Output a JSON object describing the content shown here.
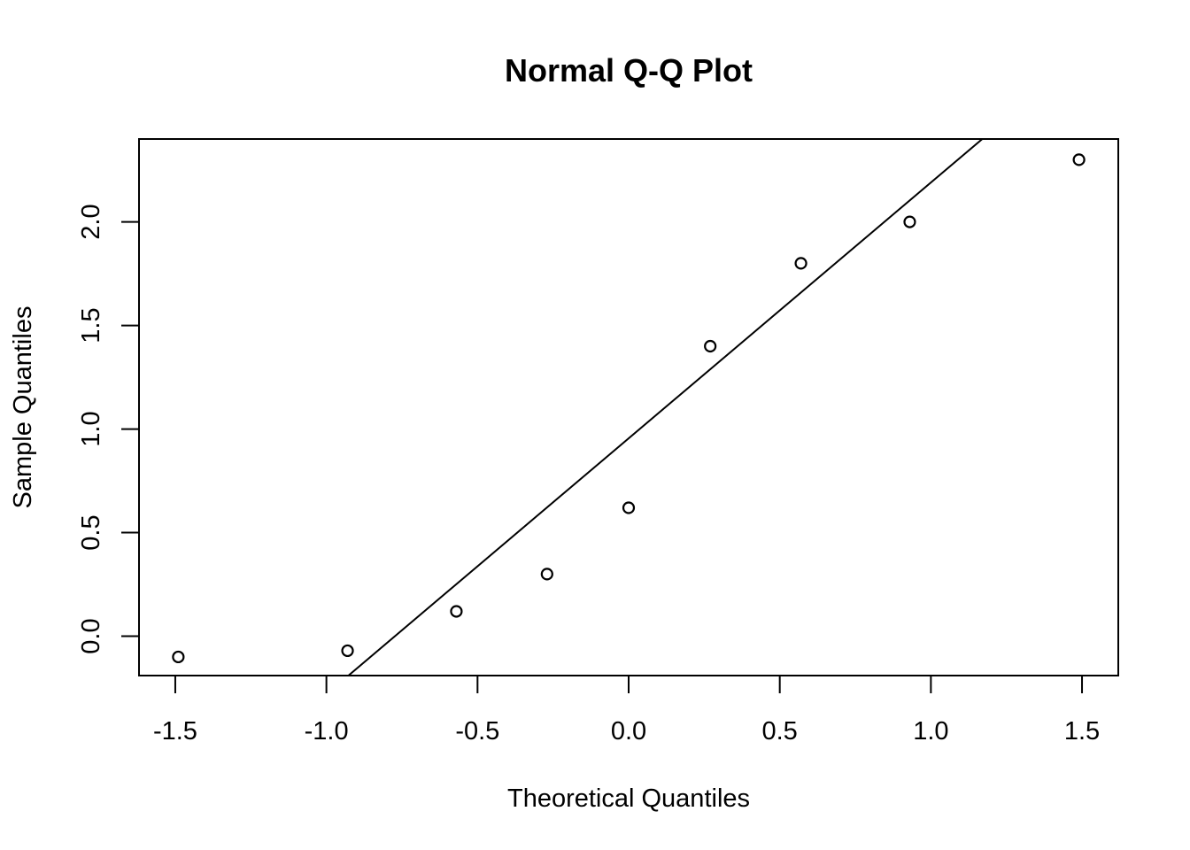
{
  "chart_data": {
    "type": "scatter",
    "title": "Normal Q-Q Plot",
    "xlabel": "Theoretical Quantiles",
    "ylabel": "Sample Quantiles",
    "xlim": [
      -1.62,
      1.62
    ],
    "ylim": [
      -0.19,
      2.4
    ],
    "x_ticks": [
      -1.5,
      -1.0,
      -0.5,
      0.0,
      0.5,
      1.0,
      1.5
    ],
    "x_tick_labels": [
      "-1.5",
      "-1.0",
      "-0.5",
      "0.0",
      "0.5",
      "1.0",
      "1.5"
    ],
    "y_ticks": [
      0.0,
      0.5,
      1.0,
      1.5,
      2.0
    ],
    "y_tick_labels": [
      "0.0",
      "0.5",
      "1.0",
      "1.5",
      "2.0"
    ],
    "grid": false,
    "points": [
      {
        "x": -1.49,
        "y": -0.1
      },
      {
        "x": -0.93,
        "y": -0.07
      },
      {
        "x": -0.57,
        "y": 0.12
      },
      {
        "x": -0.27,
        "y": 0.3
      },
      {
        "x": 0.0,
        "y": 0.62
      },
      {
        "x": 0.27,
        "y": 1.4
      },
      {
        "x": 0.57,
        "y": 1.8
      },
      {
        "x": 0.93,
        "y": 2.0
      },
      {
        "x": 1.49,
        "y": 2.3
      }
    ],
    "reference_line": {
      "intercept": 0.955,
      "slope": 1.235
    }
  }
}
